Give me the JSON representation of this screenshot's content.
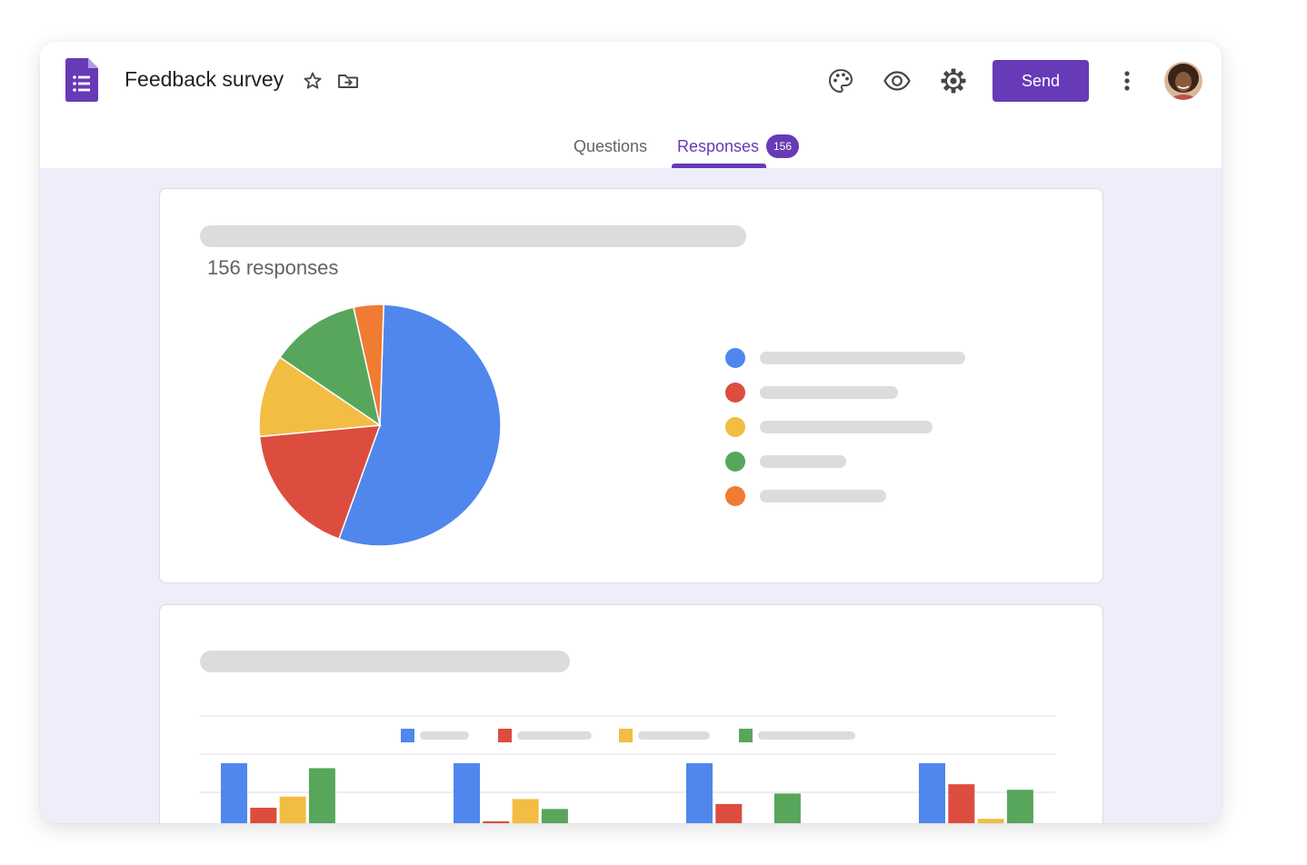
{
  "header": {
    "title": "Feedback survey",
    "send_label": "Send",
    "icons": [
      "forms-logo-icon",
      "star-icon",
      "folder-move-icon",
      "palette-icon",
      "eye-icon",
      "gear-icon",
      "more-vert-icon",
      "avatar"
    ]
  },
  "tabs": {
    "questions_label": "Questions",
    "responses_label": "Responses",
    "responses_badge": "156",
    "active": "Responses"
  },
  "colors": {
    "accent": "#673ab7",
    "background": "#eeedfa",
    "blue": "#4f87ec",
    "red": "#dc4d3f",
    "yellow": "#f2bd42",
    "green": "#58a65c",
    "orange": "#f07b32"
  },
  "summary_card": {
    "response_count_text": "156 responses"
  },
  "chart_data": [
    {
      "type": "pie",
      "slices": [
        {
          "color": "#4f87ec",
          "value": 55
        },
        {
          "color": "#dc4d3f",
          "value": 18
        },
        {
          "color": "#f2bd42",
          "value": 11
        },
        {
          "color": "#58a65c",
          "value": 12
        },
        {
          "color": "#f07b32",
          "value": 4
        }
      ],
      "legend": "right",
      "legend_colors": [
        "#4f87ec",
        "#dc4d3f",
        "#f2bd42",
        "#58a65c",
        "#f07b32"
      ]
    },
    {
      "type": "bar",
      "legend": "top",
      "grid": true,
      "ylim": [
        0,
        100
      ],
      "series": [
        {
          "color": "#4f87ec",
          "values": [
            100,
            100,
            100,
            100
          ]
        },
        {
          "color": "#dc4d3f",
          "values": [
            28,
            6,
            34,
            66
          ]
        },
        {
          "color": "#f2bd42",
          "values": [
            46,
            42,
            3,
            10
          ]
        },
        {
          "color": "#58a65c",
          "values": [
            92,
            26,
            51,
            57
          ]
        }
      ]
    }
  ]
}
